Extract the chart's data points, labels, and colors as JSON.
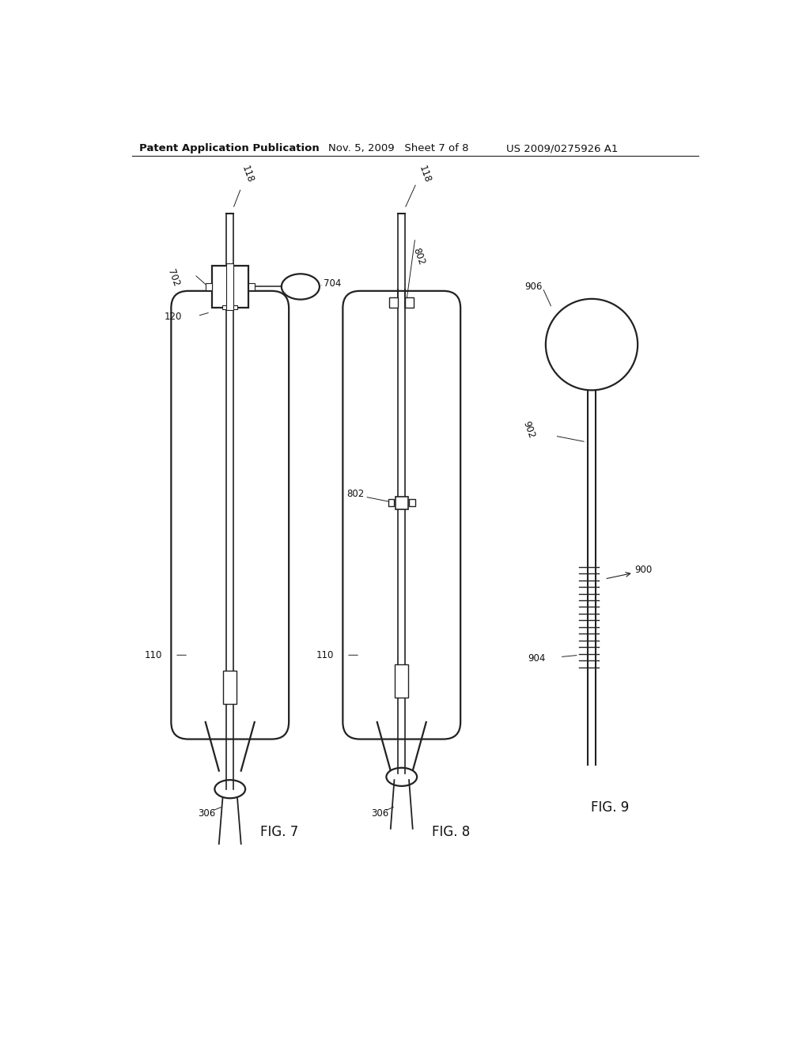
{
  "bg_color": "#ffffff",
  "header_left": "Patent Application Publication",
  "header_mid": "Nov. 5, 2009   Sheet 7 of 8",
  "header_right": "US 2009/0275926 A1",
  "line_color": "#222222",
  "text_color": "#111111",
  "label_fontsize": 8.5,
  "header_fontsize": 9.5,
  "fig_label_fontsize": 12
}
